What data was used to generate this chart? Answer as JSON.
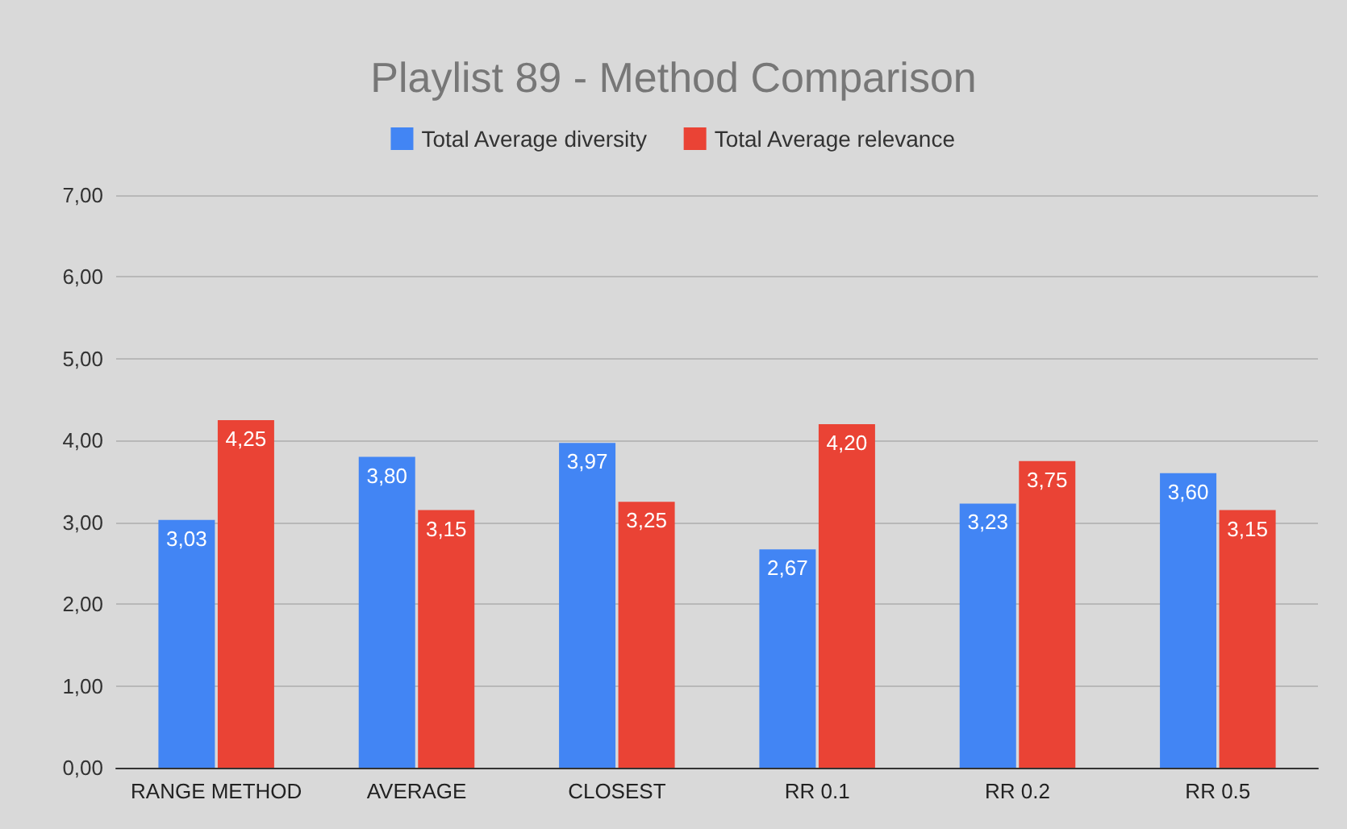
{
  "chart_data": {
    "type": "bar",
    "title": "Playlist 89 - Method Comparison",
    "categories": [
      "RANGE METHOD",
      "AVERAGE",
      "CLOSEST",
      "RR 0.1",
      "RR 0.2",
      "RR 0.5"
    ],
    "series": [
      {
        "name": "Total Average diversity",
        "color": "#4285f4",
        "values": [
          3.03,
          3.8,
          3.97,
          2.67,
          3.23,
          3.6
        ],
        "value_labels": [
          "3,03",
          "3,80",
          "3,97",
          "2,67",
          "3,23",
          "3,60"
        ]
      },
      {
        "name": "Total Average relevance",
        "color": "#ea4335",
        "values": [
          4.25,
          3.15,
          3.25,
          4.2,
          3.75,
          3.15
        ],
        "value_labels": [
          "4,25",
          "3,15",
          "3,25",
          "4,20",
          "3,75",
          "3,15"
        ]
      }
    ],
    "ylim": [
      0,
      7
    ],
    "yticks": [
      {
        "value": 0,
        "label": "0,00"
      },
      {
        "value": 1,
        "label": "1,00"
      },
      {
        "value": 2,
        "label": "2,00"
      },
      {
        "value": 3,
        "label": "3,00"
      },
      {
        "value": 4,
        "label": "4,00"
      },
      {
        "value": 5,
        "label": "5,00"
      },
      {
        "value": 6,
        "label": "6,00"
      },
      {
        "value": 7,
        "label": "7,00"
      }
    ],
    "grid": "y",
    "legend": "top"
  }
}
